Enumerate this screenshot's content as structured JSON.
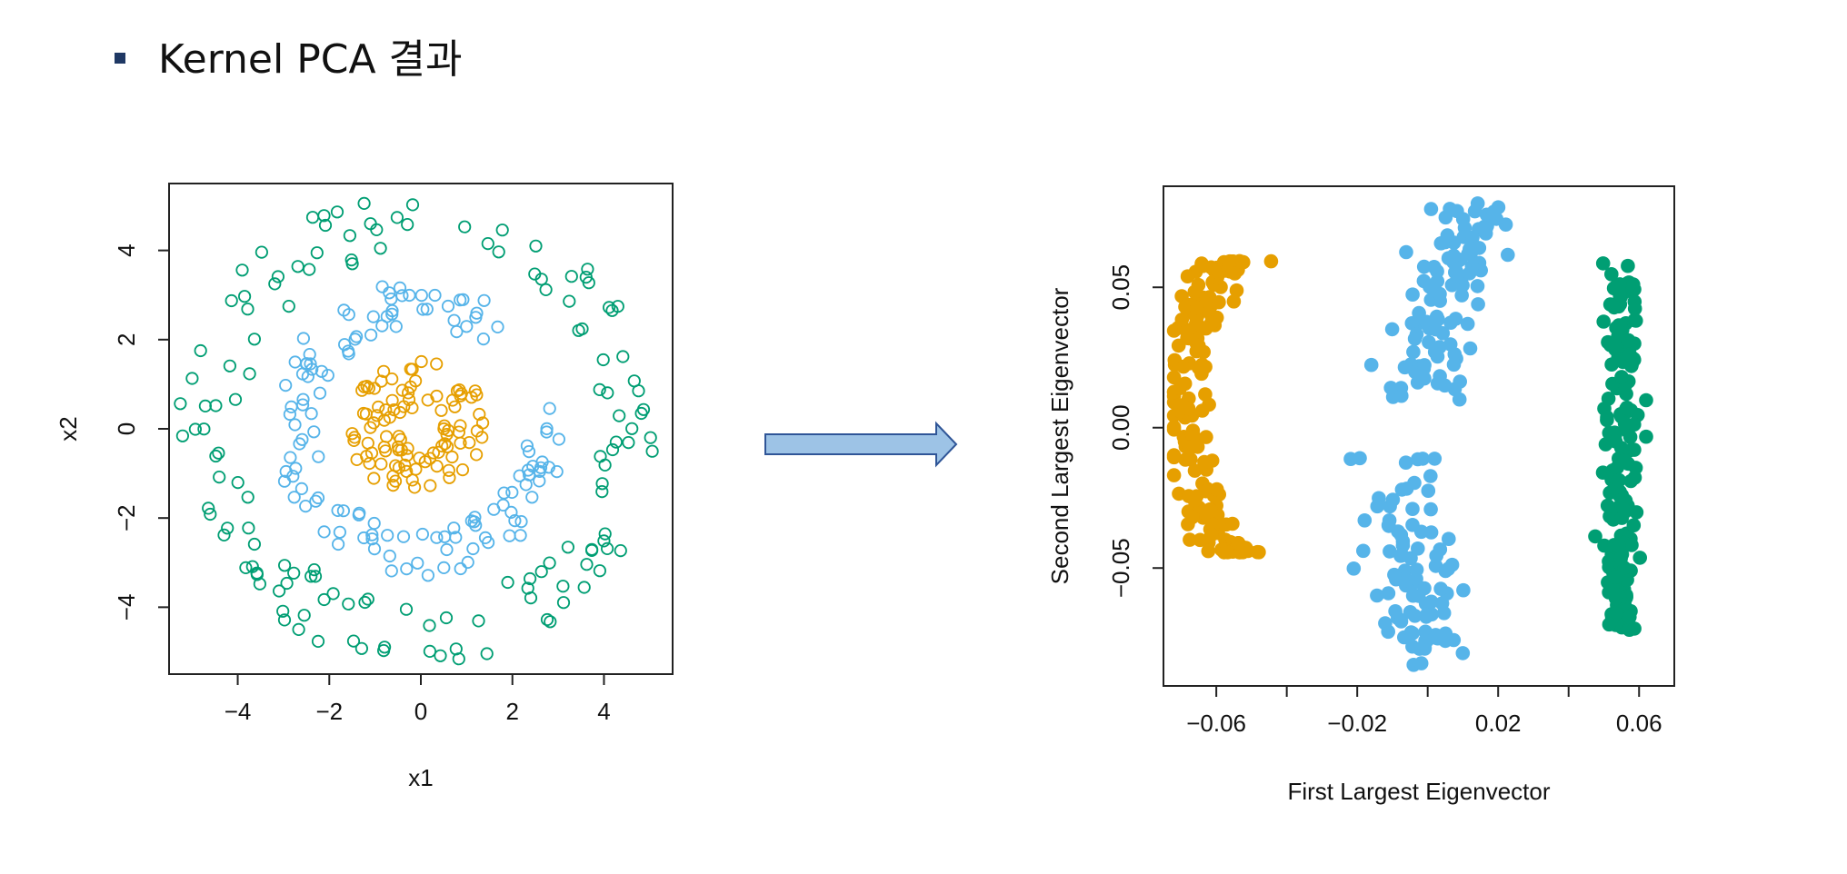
{
  "slide": {
    "title": "Kernel PCA 결과",
    "bullet_color": "#1f3864"
  },
  "arrow": {
    "fill": "#9dc3e6",
    "stroke": "#2f5597"
  },
  "palette": {
    "orange": "#e69f00",
    "blue": "#56b4e9",
    "green": "#009e73"
  },
  "chart_data": [
    {
      "type": "scatter",
      "marker": "open-circle",
      "title": "",
      "xlabel": "x1",
      "ylabel": "x2",
      "xlim": [
        -5.5,
        5.5
      ],
      "ylim": [
        -5.5,
        5.5
      ],
      "xticks": [
        -4,
        -2,
        0,
        2,
        4
      ],
      "yticks": [
        -4,
        -2,
        0,
        2,
        4
      ],
      "xtick_labels": [
        "−4",
        "−2",
        "0",
        "2",
        "4"
      ],
      "ytick_labels": [
        "−4",
        "−2",
        "0",
        "2",
        "4"
      ],
      "grid": false,
      "series": [
        {
          "color": "#e69f00",
          "ring": "inner",
          "radius_range": [
            0.5,
            1.6
          ],
          "count": 100
        },
        {
          "color": "#56b4e9",
          "ring": "middle",
          "radius_range": [
            2.3,
            3.3
          ],
          "count": 130
        },
        {
          "color": "#009e73",
          "ring": "outer",
          "radius_range": [
            3.9,
            5.3
          ],
          "count": 140
        }
      ]
    },
    {
      "type": "scatter",
      "marker": "filled-circle",
      "title": "",
      "xlabel": "First Largest Eigenvector",
      "ylabel": "Second Largest Eigenvector",
      "xlim": [
        -0.075,
        0.07
      ],
      "ylim": [
        -0.092,
        0.086
      ],
      "xticks": [
        -0.06,
        -0.04,
        -0.02,
        0.0,
        0.02,
        0.04,
        0.06
      ],
      "xtick_labels": [
        "−0.06",
        "",
        "−0.02",
        "",
        "0.02",
        "",
        "0.06"
      ],
      "yticks": [
        0.05,
        0.0,
        -0.05
      ],
      "ytick_labels": [
        "0.05",
        "0.00",
        "−0.05"
      ],
      "grid": false,
      "series": [
        {
          "color": "#e69f00",
          "shape": "arc",
          "x_range": [
            -0.072,
            -0.039
          ],
          "y_range": [
            -0.046,
            0.061
          ],
          "count": 180
        },
        {
          "color": "#56b4e9",
          "shape": "two-arcs",
          "x_range": [
            -0.026,
            0.026
          ],
          "y_range": [
            -0.085,
            0.08
          ],
          "count": 200
        },
        {
          "color": "#009e73",
          "shape": "band",
          "x_range": [
            0.04,
            0.062
          ],
          "y_range": [
            -0.072,
            0.059
          ],
          "count": 190
        }
      ]
    }
  ]
}
